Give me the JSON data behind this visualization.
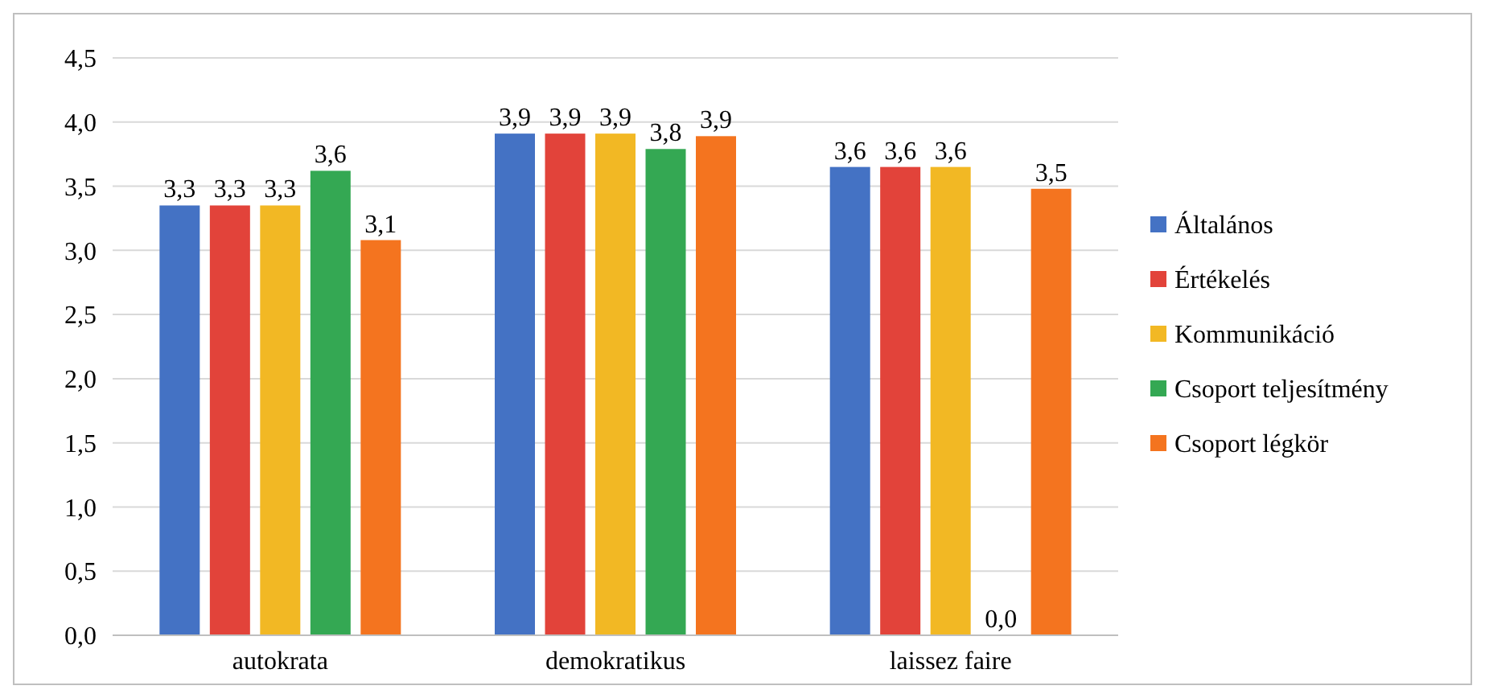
{
  "chart_data": {
    "type": "bar",
    "categories": [
      "autokrata",
      "demokratikus",
      "laissez faire"
    ],
    "series": [
      {
        "name": "Általános",
        "color": "#4472c4",
        "values": [
          3.35,
          3.91,
          3.65
        ],
        "value_labels": [
          "3,3",
          "3,9",
          "3,6"
        ]
      },
      {
        "name": "Értékelés",
        "color": "#e2433a",
        "values": [
          3.35,
          3.91,
          3.65
        ],
        "value_labels": [
          "3,3",
          "3,9",
          "3,6"
        ]
      },
      {
        "name": "Kommunikáció",
        "color": "#f2b824",
        "values": [
          3.35,
          3.91,
          3.65
        ],
        "value_labels": [
          "3,3",
          "3,9",
          "3,6"
        ]
      },
      {
        "name": "Csoport teljesítmény",
        "color": "#34a853",
        "values": [
          3.62,
          3.79,
          0
        ],
        "value_labels": [
          "3,6",
          "3,8",
          "0,0"
        ]
      },
      {
        "name": "Csoport légkör",
        "color": "#f4741f",
        "values": [
          3.08,
          3.89,
          3.48
        ],
        "value_labels": [
          "3,1",
          "3,9",
          "3,5"
        ]
      }
    ],
    "ylim": [
      0,
      4.5
    ],
    "yticks": [
      {
        "value": 0,
        "label": "0,0"
      },
      {
        "value": 0.5,
        "label": "0,5"
      },
      {
        "value": 1,
        "label": "1,0"
      },
      {
        "value": 1.5,
        "label": "1,5"
      },
      {
        "value": 2,
        "label": "2,0"
      },
      {
        "value": 2.5,
        "label": "2,5"
      },
      {
        "value": 3,
        "label": "3,0"
      },
      {
        "value": 3.5,
        "label": "3,5"
      },
      {
        "value": 4,
        "label": "4,0"
      },
      {
        "value": 4.5,
        "label": "4,5"
      }
    ],
    "grid": "y",
    "legend": "right"
  }
}
